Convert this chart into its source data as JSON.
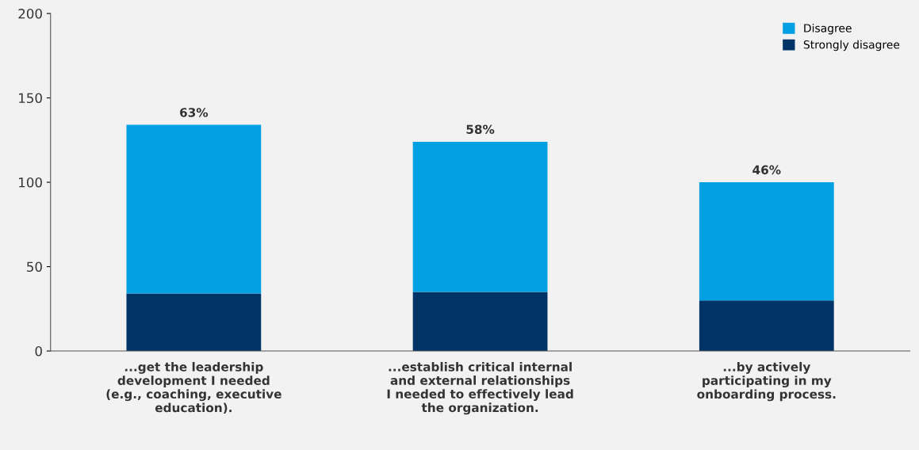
{
  "chart_data": {
    "type": "bar",
    "stacked": true,
    "categories": [
      "...get the leadership\ndevelopment I needed\n(e.g., coaching, executive\neducation).",
      "...establish critical internal\nand external relationships\nI needed to effectively lead\nthe organization.",
      "...by actively\nparticipating in my\nonboarding process."
    ],
    "series": [
      {
        "name": "Strongly disagree",
        "color": "#003366",
        "values": [
          34,
          35,
          30
        ]
      },
      {
        "name": "Disagree",
        "color": "#00a0e3",
        "values": [
          100,
          89,
          70
        ]
      }
    ],
    "annotations": [
      {
        "text": "63%",
        "x": "...get the leadership\ndevelopment I needed\n(e.g., coaching, executive\neducation).",
        "y": 134
      },
      {
        "text": "58%",
        "x": "...establish critical internal\nand external relationships\nI needed to effectively lead\nthe organization.",
        "y": 124
      },
      {
        "text": "46%",
        "x": "...by actively\nparticipating in my\nonboarding process.",
        "y": 100
      }
    ],
    "ylim": [
      0,
      200
    ],
    "yticks": [
      0,
      50,
      100,
      150,
      200
    ],
    "grid": false,
    "legend": "top right"
  }
}
